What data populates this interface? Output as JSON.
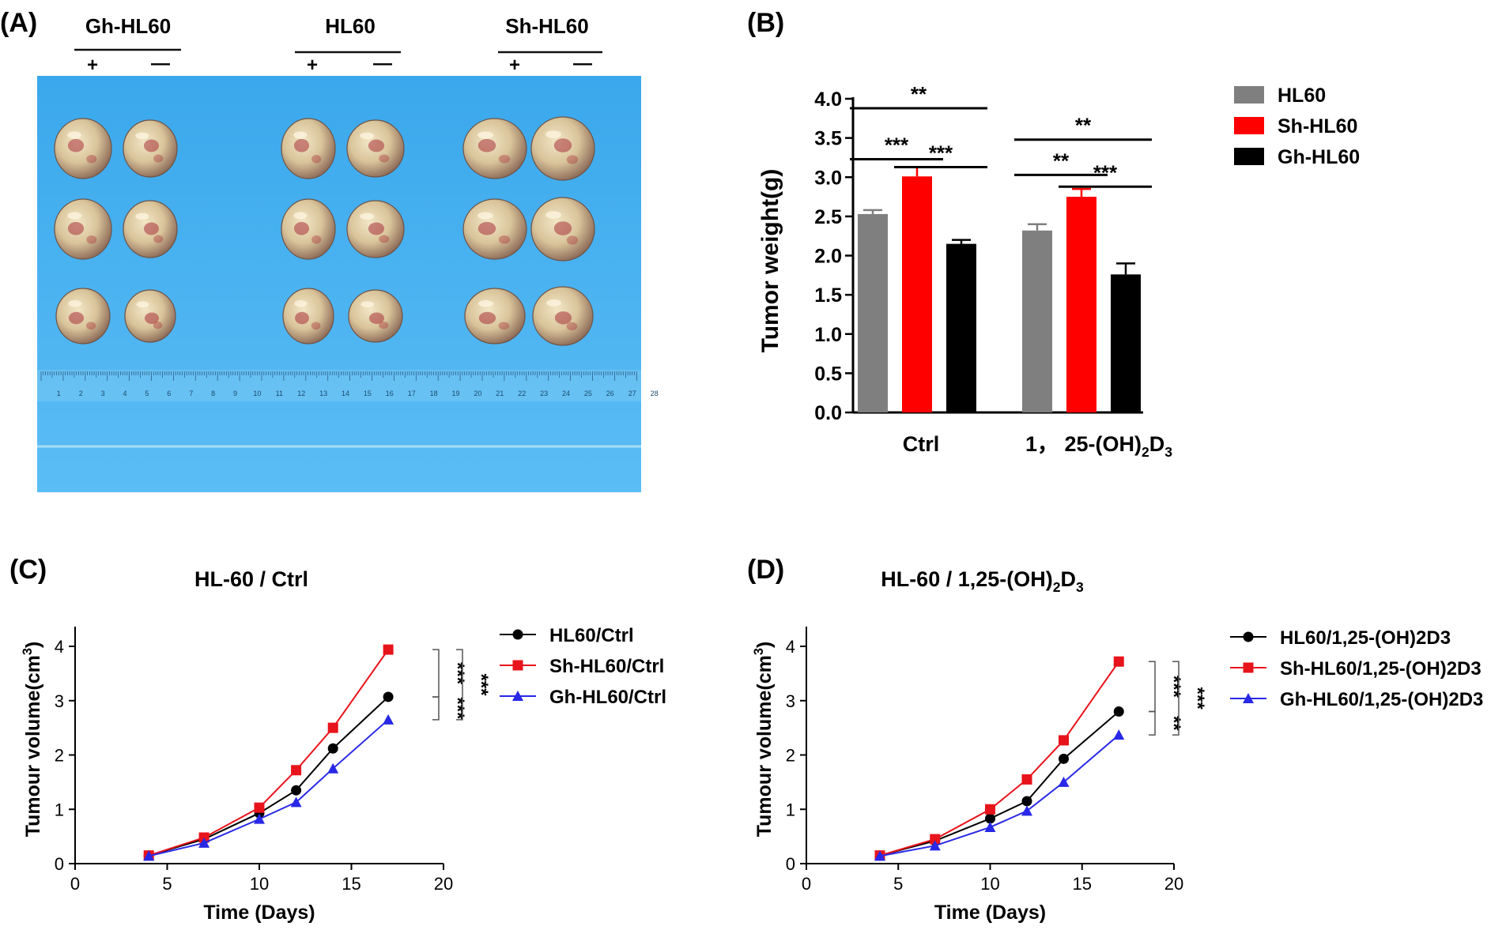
{
  "panels": {
    "A": {
      "label": "(A)",
      "groups": [
        {
          "name": "Gh-HL60",
          "signs": [
            "+",
            "—"
          ]
        },
        {
          "name": "HL60",
          "signs": [
            "+",
            "—"
          ]
        },
        {
          "name": "Sh-HL60",
          "signs": [
            "+",
            "—"
          ]
        }
      ],
      "ruler_ticks": [
        "1",
        "2",
        "3",
        "4",
        "5",
        "6",
        "7",
        "8",
        "9",
        "10",
        "11",
        "12",
        "13",
        "14",
        "15",
        "16",
        "17",
        "18",
        "19",
        "20",
        "21",
        "22",
        "23",
        "24",
        "25",
        "26",
        "27",
        "28"
      ],
      "colors": {
        "background": "#4fb3ee",
        "tumor": "#d9c49a",
        "blood": "#a8323a"
      }
    },
    "B": {
      "label": "(B)"
    },
    "C": {
      "label": "(C)"
    },
    "D": {
      "label": "(D)"
    }
  },
  "chart_data": [
    {
      "id": "B",
      "type": "bar",
      "title": "",
      "xlabel": "",
      "ylabel": "Tumor weight(g)",
      "ylim": [
        0,
        4.0
      ],
      "yticks": [
        "0.0",
        "0.5",
        "1.0",
        "1.5",
        "2.0",
        "2.5",
        "3.0",
        "3.5",
        "4.0"
      ],
      "yticks_values": [
        0,
        0.5,
        1.0,
        1.5,
        2.0,
        2.5,
        3.0,
        3.5,
        4.0
      ],
      "categories": [
        {
          "label": "Ctrl"
        },
        {
          "label_parts": [
            "1， 25-(OH)",
            "2",
            "D",
            "3"
          ]
        }
      ],
      "series": [
        {
          "name": "HL60",
          "color": "#7f7f7f",
          "values": [
            2.53,
            2.32
          ],
          "errors": [
            0.05,
            0.08
          ]
        },
        {
          "name": "Sh-HL60",
          "color": "#ff0000",
          "values": [
            3.01,
            2.75
          ],
          "errors": [
            0.12,
            0.1
          ]
        },
        {
          "name": "Gh-HL60",
          "color": "#000000",
          "values": [
            2.15,
            1.76
          ],
          "errors": [
            0.05,
            0.14
          ]
        }
      ],
      "legend_position": "right",
      "significance": [
        {
          "category": 0,
          "from": 0,
          "to": 2,
          "level": 4.0,
          "label": "**"
        },
        {
          "category": 0,
          "from": 0,
          "to": 1,
          "level": 3.35,
          "label": "***"
        },
        {
          "category": 0,
          "from": 1,
          "to": 2,
          "level": 3.25,
          "label": "***"
        },
        {
          "category": 1,
          "from": 0,
          "to": 2,
          "level": 3.6,
          "label": "**"
        },
        {
          "category": 1,
          "from": 0,
          "to": 1,
          "level": 3.15,
          "label": "**"
        },
        {
          "category": 1,
          "from": 1,
          "to": 2,
          "level": 3.0,
          "label": "***"
        }
      ]
    },
    {
      "id": "C",
      "type": "line",
      "title_parts": [
        "HL-60 / Ctrl"
      ],
      "xlabel": "Time (Days)",
      "ylabel_parts": [
        "Tumour volume(cm",
        "3",
        ")"
      ],
      "xlim": [
        0,
        20
      ],
      "ylim": [
        0,
        4
      ],
      "xticks": [
        "0",
        "5",
        "10",
        "15",
        "20"
      ],
      "xticks_values": [
        0,
        5,
        10,
        15,
        20
      ],
      "yticks": [
        "0",
        "1",
        "2",
        "3",
        "4"
      ],
      "yticks_values": [
        0,
        1,
        2,
        3,
        4
      ],
      "x": [
        4,
        7,
        10,
        12,
        14,
        17
      ],
      "series": [
        {
          "name": "HL60/Ctrl",
          "color": "#000000",
          "marker": "circle",
          "values": [
            0.15,
            0.45,
            0.93,
            1.35,
            2.12,
            3.07
          ]
        },
        {
          "name": "Sh-HL60/Ctrl",
          "color": "#e8141b",
          "marker": "square",
          "values": [
            0.15,
            0.48,
            1.03,
            1.72,
            2.5,
            3.94
          ]
        },
        {
          "name": "Gh-HL60/Ctrl",
          "color": "#2828e6",
          "marker": "triangle",
          "values": [
            0.14,
            0.38,
            0.82,
            1.13,
            1.75,
            2.65
          ]
        }
      ],
      "legend_position": "right",
      "significance": [
        {
          "from": 1,
          "to": 0,
          "label": "***",
          "level": 1
        },
        {
          "from": 0,
          "to": 2,
          "label": "***",
          "level": 1
        },
        {
          "from": 1,
          "to": 2,
          "label": "***",
          "level": 2
        }
      ]
    },
    {
      "id": "D",
      "type": "line",
      "title_parts": [
        "HL-60 / 1,25-(OH)",
        "2",
        "D",
        "3"
      ],
      "xlabel": "Time (Days)",
      "ylabel_parts": [
        "Tumour volume(cm",
        "3",
        ")"
      ],
      "xlim": [
        0,
        20
      ],
      "ylim": [
        0,
        4
      ],
      "xticks": [
        "0",
        "5",
        "10",
        "15",
        "20"
      ],
      "xticks_values": [
        0,
        5,
        10,
        15,
        20
      ],
      "yticks": [
        "0",
        "1",
        "2",
        "3",
        "4"
      ],
      "yticks_values": [
        0,
        1,
        2,
        3,
        4
      ],
      "x": [
        4,
        7,
        10,
        12,
        14,
        17
      ],
      "series": [
        {
          "name": "HL60/1,25-(OH)2D3",
          "color": "#000000",
          "marker": "circle",
          "values": [
            0.15,
            0.42,
            0.83,
            1.15,
            1.93,
            2.8
          ]
        },
        {
          "name": "Sh-HL60/1,25-(OH)2D3",
          "color": "#e8141b",
          "marker": "square",
          "values": [
            0.15,
            0.45,
            1.0,
            1.55,
            2.27,
            3.72
          ]
        },
        {
          "name": "Gh-HL60/1,25-(OH)2D3",
          "color": "#2828e6",
          "marker": "triangle",
          "values": [
            0.14,
            0.33,
            0.67,
            0.97,
            1.5,
            2.37
          ]
        }
      ],
      "legend_position": "right",
      "significance": [
        {
          "from": 1,
          "to": 0,
          "label": "***",
          "level": 1
        },
        {
          "from": 0,
          "to": 2,
          "label": "**",
          "level": 1
        },
        {
          "from": 1,
          "to": 2,
          "label": "***",
          "level": 2
        }
      ]
    }
  ]
}
